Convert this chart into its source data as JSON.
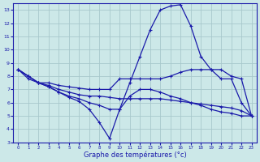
{
  "xlabel": "Graphe des températures (°c)",
  "bg_color": "#cce8e8",
  "grid_color": "#a8c8cc",
  "line_color": "#1a1aaa",
  "xlim": [
    -0.5,
    23.5
  ],
  "ylim": [
    3,
    13.5
  ],
  "yticks": [
    3,
    4,
    5,
    6,
    7,
    8,
    9,
    10,
    11,
    12,
    13
  ],
  "xticks": [
    0,
    1,
    2,
    3,
    4,
    5,
    6,
    7,
    8,
    9,
    10,
    11,
    12,
    13,
    14,
    15,
    16,
    17,
    18,
    19,
    20,
    21,
    22,
    23
  ],
  "line1_x": [
    0,
    1,
    2,
    3,
    4,
    5,
    6,
    7,
    8,
    9,
    10,
    11,
    12,
    13,
    14,
    15,
    16,
    17,
    18,
    19,
    20,
    21,
    22,
    23
  ],
  "line1_y": [
    8.5,
    8.0,
    7.5,
    7.2,
    6.8,
    6.5,
    6.3,
    6.0,
    5.8,
    5.5,
    5.5,
    7.5,
    9.5,
    11.5,
    13.0,
    13.3,
    13.4,
    11.8,
    9.5,
    8.5,
    8.5,
    8.0,
    7.8,
    5.0
  ],
  "line2_x": [
    0,
    1,
    2,
    3,
    4,
    5,
    6,
    7,
    8,
    9,
    10,
    11,
    12,
    13,
    14,
    15,
    16,
    17,
    18,
    19,
    20,
    21,
    22,
    23
  ],
  "line2_y": [
    8.5,
    8.0,
    7.5,
    7.5,
    7.3,
    7.2,
    7.1,
    7.0,
    7.0,
    7.0,
    7.8,
    7.8,
    7.8,
    7.8,
    7.8,
    8.0,
    8.3,
    8.5,
    8.5,
    8.5,
    7.8,
    7.8,
    6.0,
    5.0
  ],
  "line3_x": [
    0,
    1,
    2,
    3,
    4,
    5,
    6,
    7,
    8,
    9,
    10,
    11,
    12,
    13,
    14,
    15,
    16,
    17,
    18,
    19,
    20,
    21,
    22,
    23
  ],
  "line3_y": [
    8.5,
    8.0,
    7.5,
    7.3,
    7.0,
    6.8,
    6.6,
    6.5,
    6.5,
    6.4,
    6.3,
    6.3,
    6.3,
    6.3,
    6.3,
    6.2,
    6.1,
    6.0,
    5.9,
    5.8,
    5.7,
    5.6,
    5.4,
    5.0
  ],
  "line4_x": [
    0,
    1,
    2,
    3,
    4,
    5,
    6,
    7,
    8,
    9,
    10,
    11,
    12,
    13,
    14,
    15,
    16,
    17,
    18,
    19,
    20,
    21,
    22,
    23
  ],
  "line4_y": [
    8.5,
    7.8,
    7.5,
    7.2,
    6.8,
    6.4,
    6.1,
    5.5,
    4.5,
    3.3,
    5.5,
    6.5,
    7.0,
    7.0,
    6.8,
    6.5,
    6.3,
    6.0,
    5.8,
    5.5,
    5.3,
    5.2,
    5.0,
    5.0
  ]
}
